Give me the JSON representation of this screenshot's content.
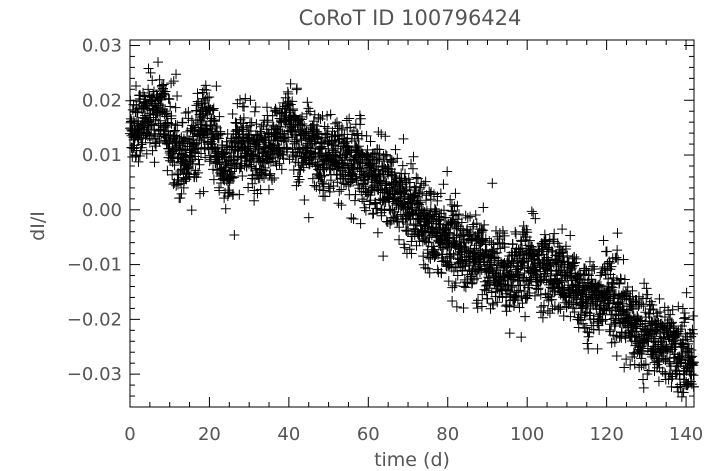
{
  "chart_data": {
    "type": "scatter",
    "title": "CoRoT ID 100796424",
    "xlabel": "time (d)",
    "ylabel": "dI/I",
    "xlim": [
      0,
      142
    ],
    "ylim": [
      -0.036,
      0.031
    ],
    "xticks": [
      0,
      20,
      40,
      60,
      80,
      100,
      120,
      140
    ],
    "xtick_labels": [
      "0",
      "20",
      "40",
      "60",
      "80",
      "100",
      "120",
      "140"
    ],
    "yticks": [
      -0.03,
      -0.02,
      -0.01,
      0.0,
      0.01,
      0.02,
      0.03
    ],
    "ytick_labels": [
      "−0.03",
      "−0.02",
      "−0.01",
      "0.00",
      "0.01",
      "0.02",
      "0.03"
    ],
    "marker": "plus",
    "grid": false,
    "series": [
      {
        "trend": {
          "x": [
            0,
            3,
            6,
            8,
            10,
            13,
            15,
            17,
            19,
            21,
            23,
            25,
            27,
            29,
            31,
            33,
            35,
            37,
            39,
            41,
            43,
            46,
            50,
            55,
            58,
            62,
            66,
            70,
            75,
            80,
            85,
            90,
            95,
            100,
            105,
            110,
            115,
            118,
            120,
            123,
            126,
            129,
            132,
            135,
            138,
            141
          ],
          "y": [
            0.015,
            0.016,
            0.017,
            0.019,
            0.013,
            0.01,
            0.011,
            0.014,
            0.016,
            0.013,
            0.008,
            0.006,
            0.013,
            0.012,
            0.01,
            0.008,
            0.011,
            0.013,
            0.016,
            0.014,
            0.012,
            0.011,
            0.01,
            0.009,
            0.008,
            0.006,
            0.003,
            0.001,
            -0.002,
            -0.005,
            -0.008,
            -0.01,
            -0.012,
            -0.01,
            -0.011,
            -0.013,
            -0.016,
            -0.017,
            -0.014,
            -0.018,
            -0.021,
            -0.022,
            -0.023,
            -0.024,
            -0.026,
            -0.027
          ]
        },
        "scatter_sigma": 0.0035,
        "point_count": 3200
      }
    ]
  }
}
